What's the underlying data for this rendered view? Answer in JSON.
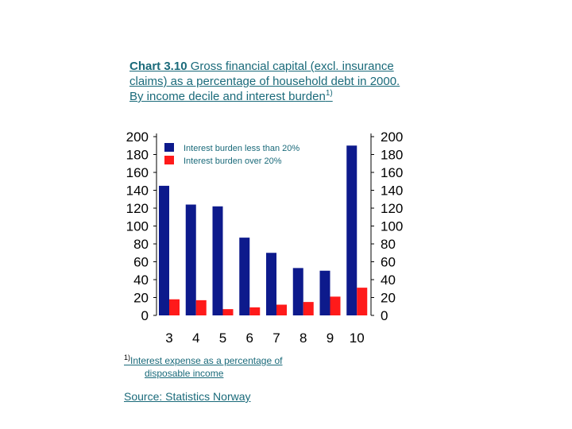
{
  "title": {
    "prefix": "Chart 3.10",
    "text": " Gross financial capital (excl. insurance claims) as a percentage of household debt in 2000. By income decile and interest burden",
    "footnote_mark": "1)"
  },
  "footnote": {
    "mark": "1)",
    "line1": "Interest expense as a percentage of",
    "line2": "disposable income"
  },
  "source": "Source: Statistics Norway",
  "colors": {
    "series1": "#0d1a8c",
    "series2": "#ff1a1a",
    "text": "#1a6a7a"
  },
  "chart_data": {
    "type": "bar",
    "categories": [
      "3",
      "4",
      "5",
      "6",
      "7",
      "8",
      "9",
      "10"
    ],
    "series": [
      {
        "name": "Interest burden less than 20%",
        "values": [
          145,
          124,
          122,
          87,
          70,
          53,
          50,
          190
        ]
      },
      {
        "name": "Interest burden over 20%",
        "values": [
          18,
          17,
          7,
          9,
          12,
          15,
          21,
          31
        ]
      }
    ],
    "ylim": [
      0,
      200
    ],
    "yticks": [
      0,
      20,
      40,
      60,
      80,
      100,
      120,
      140,
      160,
      180,
      200
    ],
    "legend": "top-left"
  }
}
